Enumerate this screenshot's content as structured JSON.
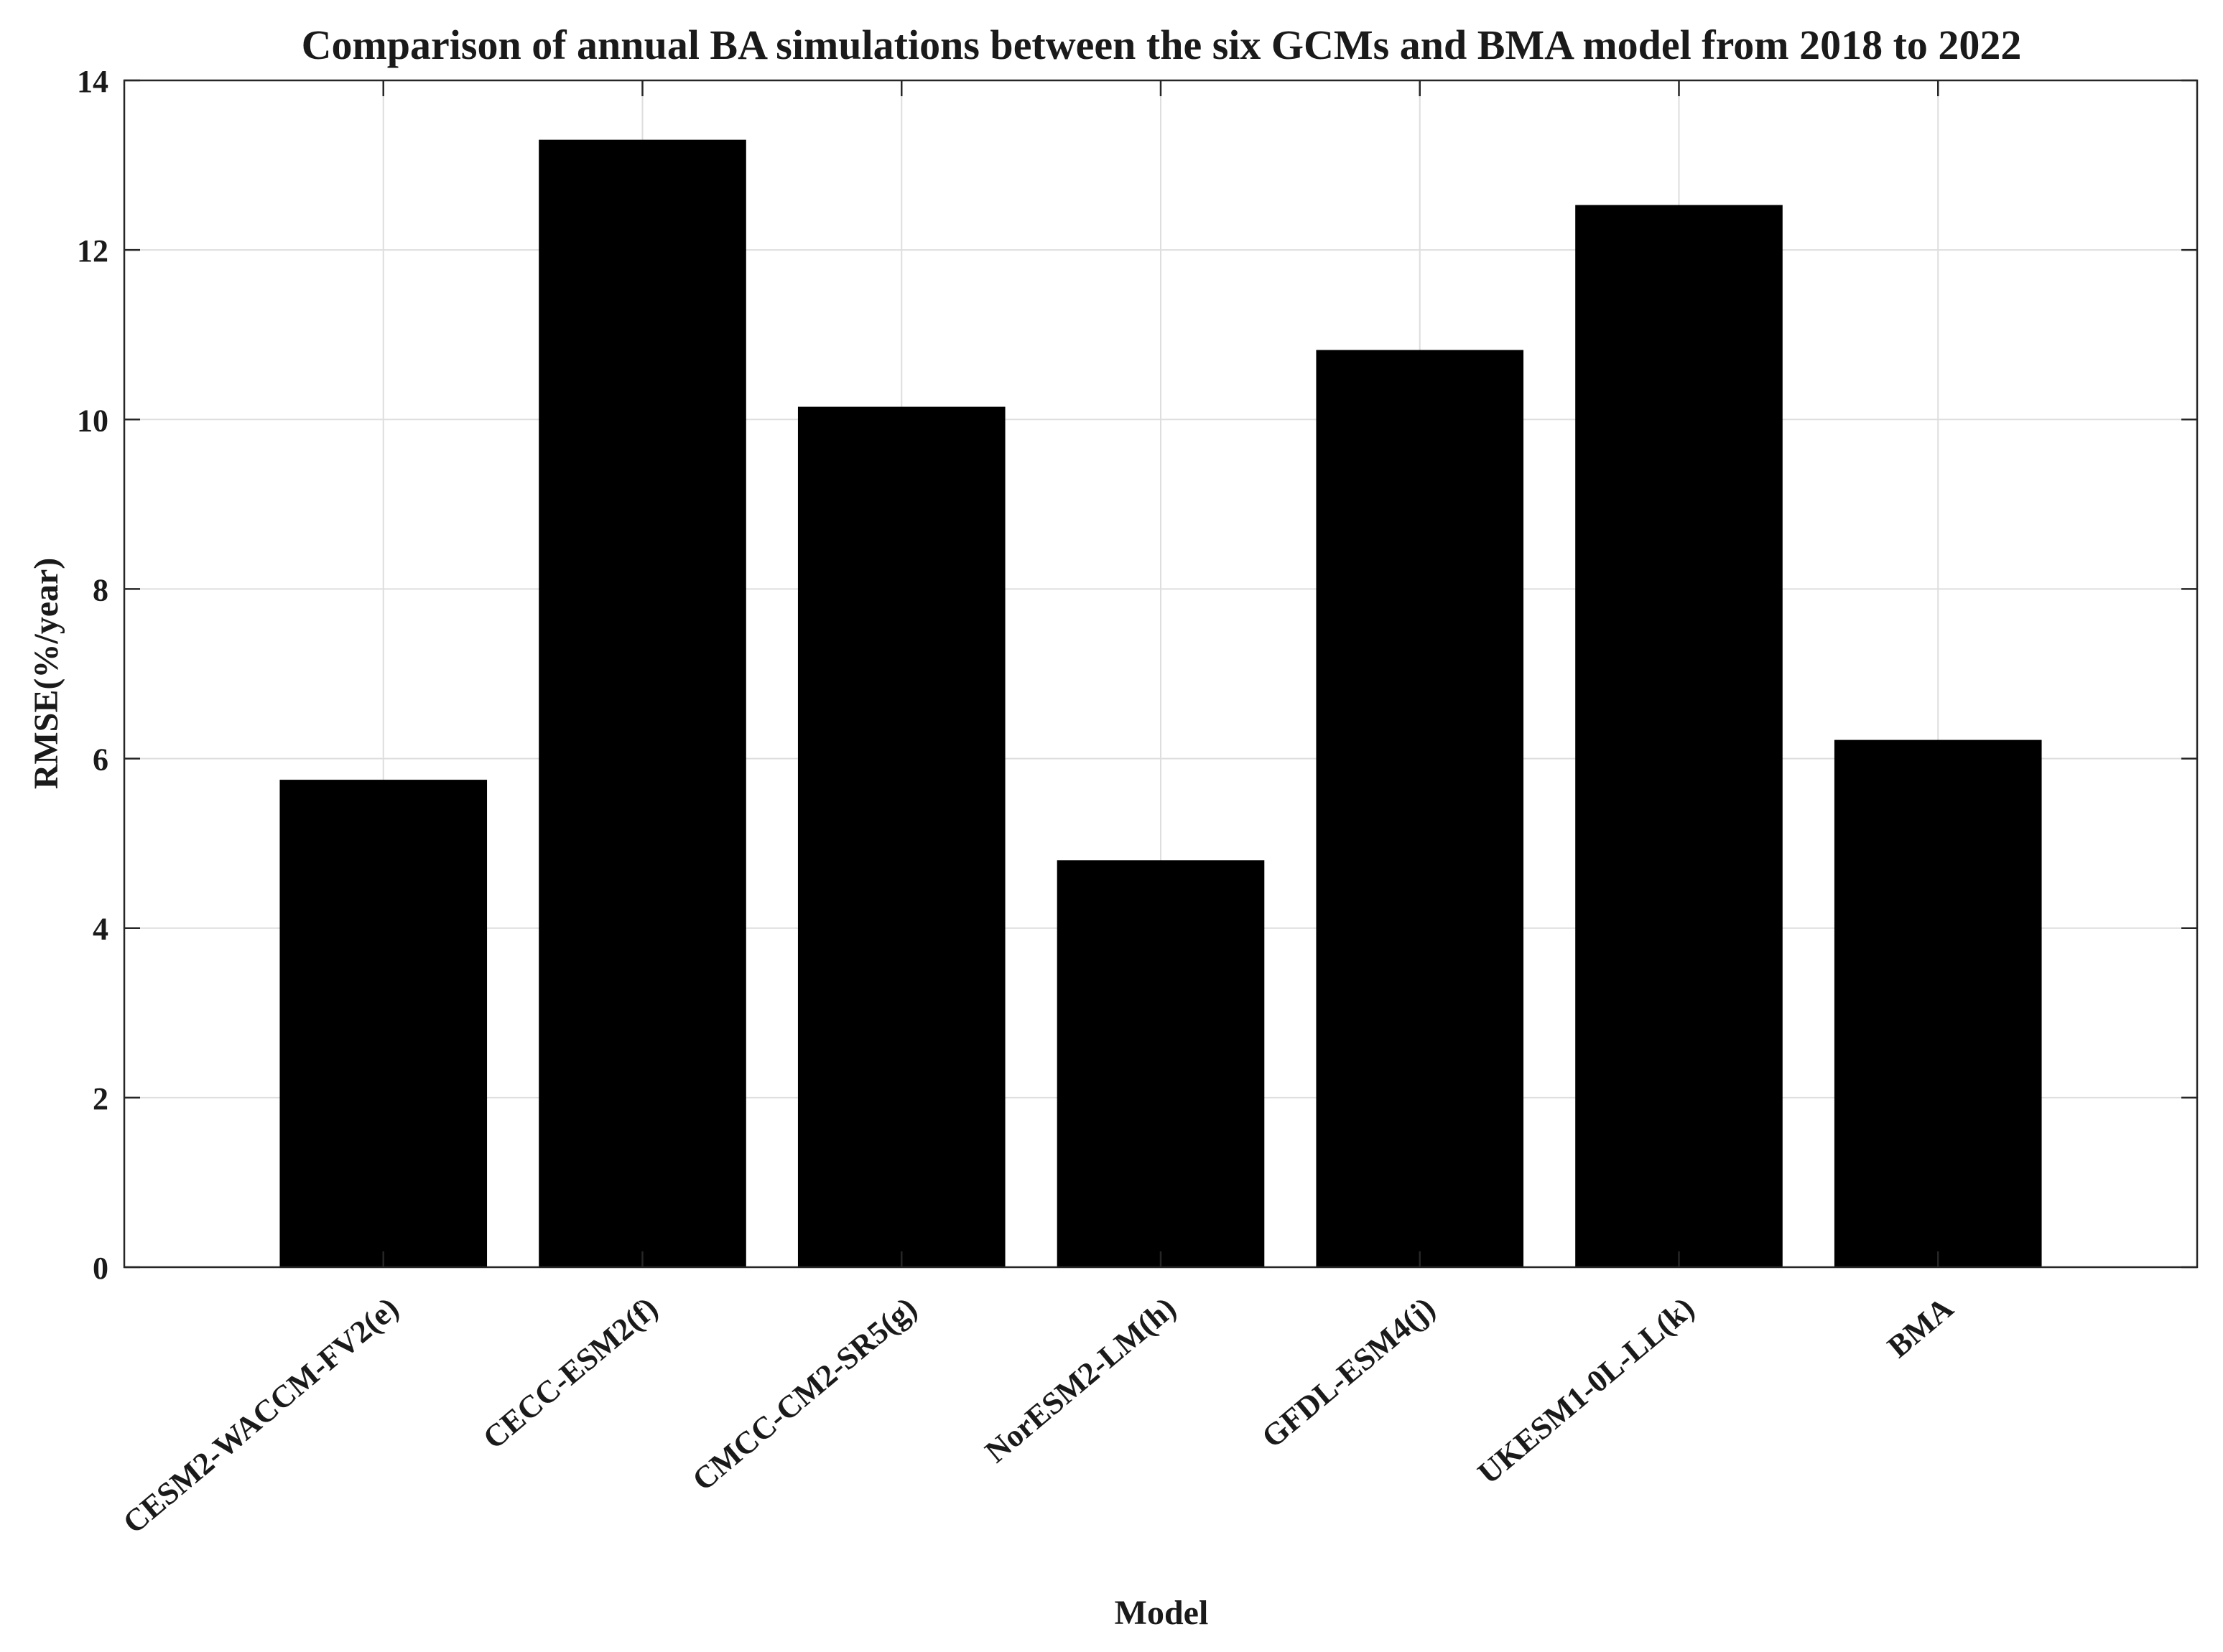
{
  "chart_data": {
    "type": "bar",
    "title": "Comparison of  annual BA simulations between the six GCMs and BMA model from 2018 to 2022",
    "xlabel": "Model",
    "ylabel": "RMSE(%/year)",
    "categories": [
      "CESM2-WACCM-FV2(e)",
      "CECC-ESM2(f)",
      "CMCC-CM2-SR5(g)",
      "NorESM2-LM(h)",
      "GFDL-ESM4(j)",
      "UKESM1-0L-LL(k)",
      "BMA"
    ],
    "values": [
      5.75,
      13.3,
      10.15,
      4.8,
      10.82,
      12.53,
      6.22
    ],
    "ylim": [
      0,
      14
    ],
    "yticks": [
      "0",
      "2",
      "4",
      "6",
      "8",
      "10",
      "12",
      "14"
    ],
    "grid": true,
    "bar_color": "#000000"
  }
}
